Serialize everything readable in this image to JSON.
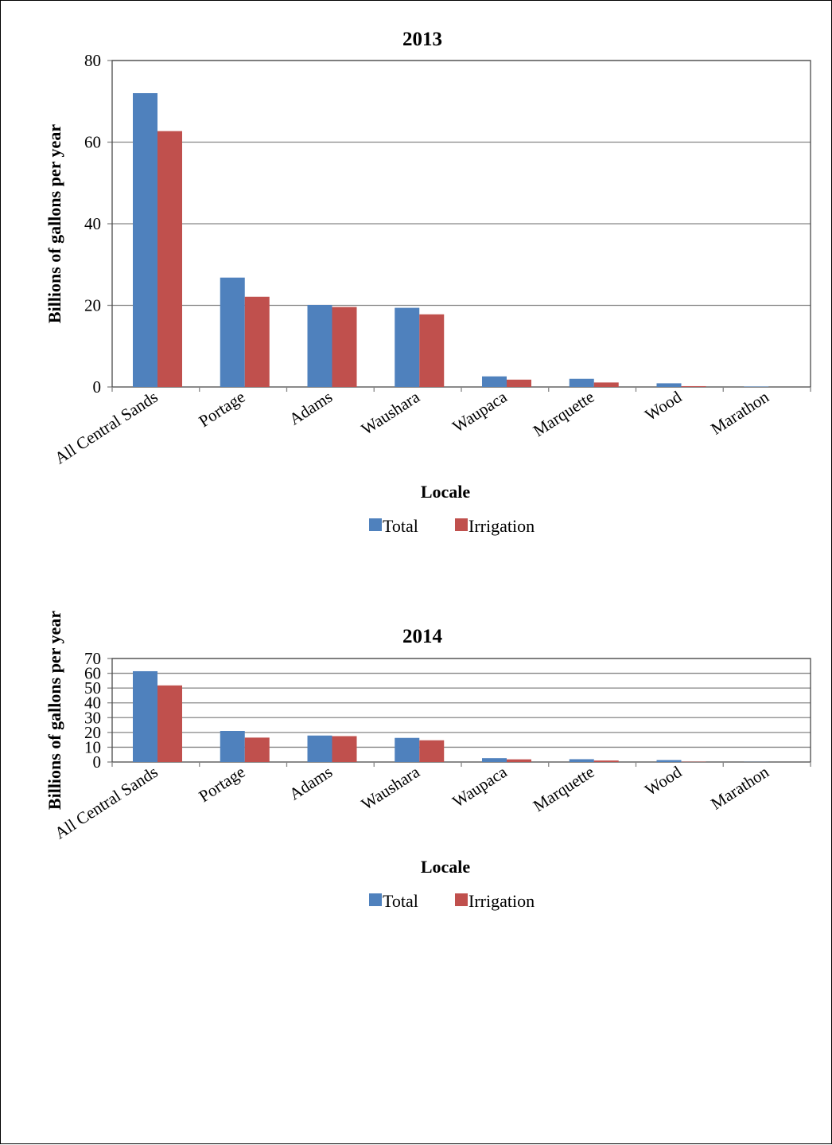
{
  "colors": {
    "total": "#4f81bd",
    "irrigation": "#c0504d",
    "grid": "#868686",
    "axis": "#868686"
  },
  "chart_data": [
    {
      "type": "bar",
      "title": "2013",
      "xlabel": "Locale",
      "ylabel": "Billions of gallons per year",
      "ylim": [
        0,
        80
      ],
      "yticks": [
        0,
        20,
        40,
        60,
        80
      ],
      "grid": true,
      "legend_position": "bottom",
      "categories": [
        "All Central Sands",
        "Portage",
        "Adams",
        "Waushara",
        "Waupaca",
        "Marquette",
        "Wood",
        "Marathon"
      ],
      "series": [
        {
          "name": "Total",
          "values": [
            72,
            26.8,
            20.1,
            19.4,
            2.6,
            2.0,
            0.9,
            0.1
          ]
        },
        {
          "name": "Irrigation",
          "values": [
            62.7,
            22.1,
            19.6,
            17.8,
            1.8,
            1.1,
            0.2,
            0.0
          ]
        }
      ]
    },
    {
      "type": "bar",
      "title": "2014",
      "xlabel": "Locale",
      "ylabel": "Billions of gallons per year",
      "ylim": [
        0,
        70
      ],
      "yticks": [
        0,
        10,
        20,
        30,
        40,
        50,
        60,
        70
      ],
      "grid": true,
      "legend_position": "bottom",
      "categories": [
        "All Central Sands",
        "Portage",
        "Adams",
        "Waushara",
        "Waupaca",
        "Marquette",
        "Wood",
        "Marathon"
      ],
      "series": [
        {
          "name": "Total",
          "values": [
            61.4,
            21.0,
            17.9,
            16.3,
            2.6,
            1.9,
            1.3,
            0.1
          ]
        },
        {
          "name": "Irrigation",
          "values": [
            51.8,
            16.5,
            17.5,
            14.7,
            1.8,
            1.0,
            0.2,
            0.0
          ]
        }
      ]
    }
  ]
}
